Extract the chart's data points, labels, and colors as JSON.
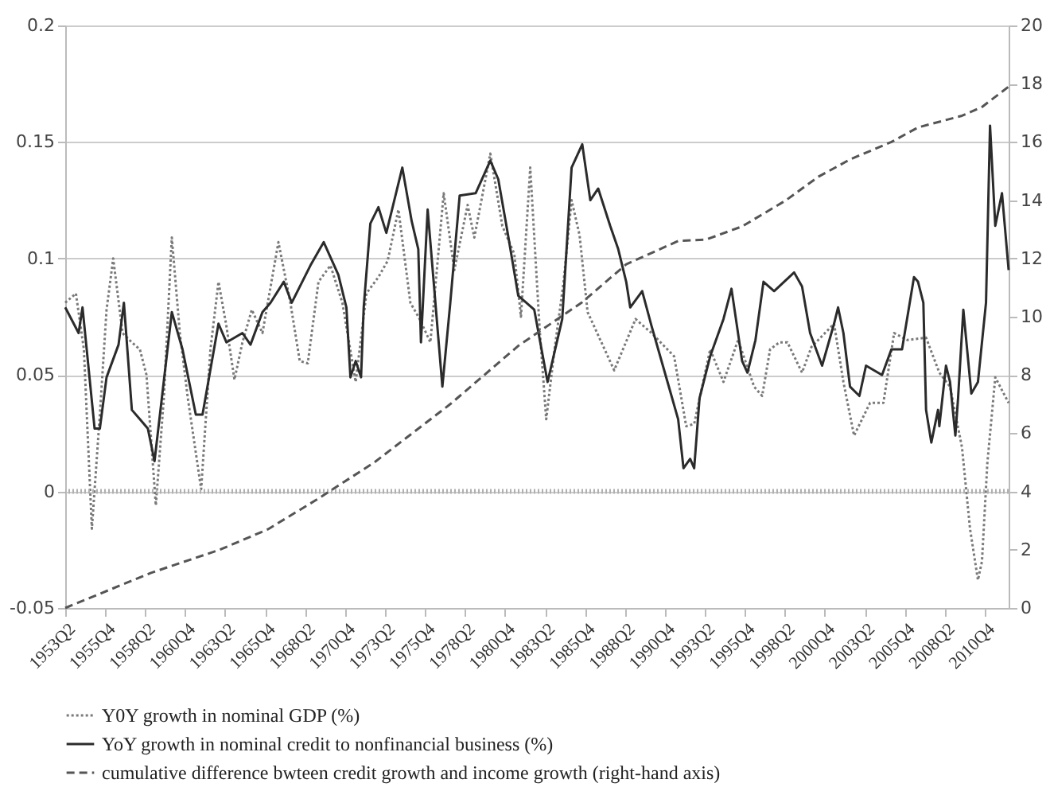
{
  "chart_data": {
    "type": "line",
    "xlim": [
      "1953-04",
      "2012-04"
    ],
    "xticks": [
      {
        "value": "1953-04",
        "label": "1953Q2"
      },
      {
        "value": "1955-10",
        "label": "1955Q4"
      },
      {
        "value": "1958-04",
        "label": "1958Q2"
      },
      {
        "value": "1960-10",
        "label": "1960Q4"
      },
      {
        "value": "1963-04",
        "label": "1963Q2"
      },
      {
        "value": "1965-10",
        "label": "1965Q4"
      },
      {
        "value": "1968-04",
        "label": "1968Q2"
      },
      {
        "value": "1970-10",
        "label": "1970Q4"
      },
      {
        "value": "1973-04",
        "label": "1973Q2"
      },
      {
        "value": "1975-10",
        "label": "1975Q4"
      },
      {
        "value": "1978-04",
        "label": "1978Q2"
      },
      {
        "value": "1980-10",
        "label": "1980Q4"
      },
      {
        "value": "1983-04",
        "label": "1983Q2"
      },
      {
        "value": "1985-10",
        "label": "1985Q4"
      },
      {
        "value": "1988-04",
        "label": "1988Q2"
      },
      {
        "value": "1990-10",
        "label": "1990Q4"
      },
      {
        "value": "1993-04",
        "label": "1993Q2"
      },
      {
        "value": "1995-10",
        "label": "1995Q4"
      },
      {
        "value": "1998-04",
        "label": "1998Q2"
      },
      {
        "value": "2000-10",
        "label": "2000Q4"
      },
      {
        "value": "2003-04",
        "label": "2003Q2"
      },
      {
        "value": "2005-10",
        "label": "2005Q4"
      },
      {
        "value": "2008-04",
        "label": "2008Q2"
      },
      {
        "value": "2010-10",
        "label": "2010Q4"
      }
    ],
    "ylim": [
      -0.05,
      0.2
    ],
    "yticks": [
      -0.05,
      0,
      0.05,
      0.1,
      0.15,
      0.2
    ],
    "y2lim": [
      0,
      20
    ],
    "y2ticks": [
      0,
      2,
      4,
      6,
      8,
      10,
      12,
      14,
      16,
      18,
      20
    ],
    "grid": "y",
    "legend": "bottom",
    "ref_lines": [
      {
        "axis": "y",
        "value": 0,
        "color": "#b0b0b0"
      }
    ],
    "series": [
      {
        "name": "Y0Y growth in nominal GDP (%)",
        "color": "#7a7a7a",
        "line_style": "dotted",
        "x": [
          "1953-04",
          "1953-12",
          "1954-06",
          "1954-12",
          "1955-06",
          "1955-11",
          "1956-04",
          "1956-11",
          "1957-06",
          "1957-12",
          "1958-05",
          "1958-12",
          "1959-06",
          "1959-12",
          "1960-06",
          "1960-12",
          "1961-10",
          "1962-05",
          "1962-11",
          "1963-05",
          "1963-11",
          "1964-05",
          "1964-12",
          "1965-08",
          "1966-08",
          "1967-05",
          "1967-12",
          "1968-06",
          "1969-02",
          "1969-11",
          "1970-08",
          "1971-06",
          "1972-02",
          "1972-11",
          "1973-06",
          "1974-02",
          "1974-11",
          "1975-06",
          "1976-02",
          "1976-12",
          "1977-08",
          "1978-06",
          "1978-11",
          "1979-11",
          "1980-08",
          "1981-05",
          "1981-10",
          "1982-05",
          "1982-12",
          "1983-05",
          "1983-11",
          "1984-06",
          "1984-12",
          "1985-06",
          "1985-12",
          "1987-08",
          "1988-12",
          "1989-12",
          "1991-05",
          "1992-02",
          "1992-08",
          "1993-08",
          "1994-06",
          "1995-05",
          "1996-05",
          "1996-11",
          "1997-05",
          "1997-12",
          "1998-06",
          "1999-05",
          "1999-12",
          "2001-05",
          "2001-12",
          "2002-08",
          "2003-08",
          "2004-06",
          "2005-02",
          "2005-12",
          "2007-02",
          "2007-12",
          "2008-08",
          "2009-05",
          "2009-11",
          "2010-05",
          "2010-08",
          "2010-12",
          "2011-06",
          "2012-04"
        ],
        "values": [
          0.081,
          0.085,
          0.061,
          -0.016,
          0.033,
          0.078,
          0.1,
          0.068,
          0.064,
          0.061,
          0.05,
          -0.006,
          0.04,
          0.109,
          0.068,
          0.04,
          0.001,
          0.061,
          0.09,
          0.071,
          0.048,
          0.064,
          0.078,
          0.068,
          0.107,
          0.081,
          0.056,
          0.055,
          0.09,
          0.097,
          0.081,
          0.047,
          0.085,
          0.092,
          0.099,
          0.121,
          0.081,
          0.074,
          0.064,
          0.128,
          0.095,
          0.123,
          0.109,
          0.145,
          0.114,
          0.102,
          0.075,
          0.139,
          0.07,
          0.031,
          0.06,
          0.09,
          0.125,
          0.11,
          0.077,
          0.052,
          0.074,
          0.068,
          0.058,
          0.028,
          0.029,
          0.061,
          0.047,
          0.065,
          0.045,
          0.041,
          0.061,
          0.064,
          0.064,
          0.051,
          0.062,
          0.072,
          0.047,
          0.024,
          0.038,
          0.038,
          0.068,
          0.065,
          0.066,
          0.051,
          0.045,
          0.019,
          -0.016,
          -0.038,
          -0.03,
          0.012,
          0.049,
          0.038
        ]
      },
      {
        "name": "YoY growth in nominal credit to nonfinancial business (%)",
        "color": "#2b2b2b",
        "line_style": "solid",
        "x": [
          "1953-04",
          "1954-02",
          "1954-05",
          "1955-02",
          "1955-06",
          "1955-11",
          "1956-08",
          "1956-12",
          "1957-06",
          "1957-12",
          "1958-06",
          "1958-11",
          "1959-12",
          "1960-08",
          "1961-06",
          "1961-11",
          "1962-11",
          "1963-05",
          "1964-05",
          "1964-11",
          "1965-08",
          "1966-02",
          "1966-12",
          "1967-06",
          "1968-08",
          "1969-06",
          "1970-05",
          "1970-11",
          "1971-02",
          "1971-06",
          "1971-10",
          "1971-12",
          "1972-05",
          "1972-11",
          "1973-05",
          "1974-05",
          "1974-12",
          "1975-05",
          "1975-07",
          "1975-12",
          "1976-11",
          "1977-05",
          "1977-12",
          "1978-12",
          "1979-11",
          "1980-05",
          "1980-12",
          "1981-08",
          "1982-08",
          "1983-06",
          "1984-05",
          "1984-12",
          "1985-08",
          "1986-02",
          "1986-08",
          "1987-05",
          "1987-11",
          "1988-05",
          "1988-08",
          "1989-05",
          "1989-12",
          "1990-12",
          "1991-08",
          "1991-12",
          "1992-05",
          "1992-08",
          "1992-12",
          "1993-08",
          "1994-06",
          "1994-12",
          "1995-08",
          "1995-12",
          "1996-06",
          "1996-12",
          "1997-08",
          "1998-11",
          "1999-05",
          "1999-11",
          "2000-08",
          "2001-05",
          "2001-08",
          "2001-12",
          "2002-05",
          "2002-12",
          "2003-05",
          "2004-05",
          "2004-12",
          "2005-08",
          "2006-05",
          "2006-08",
          "2006-12",
          "2007-02",
          "2007-06",
          "2007-11",
          "2007-12",
          "2008-05",
          "2008-08",
          "2008-12",
          "2009-02",
          "2009-06",
          "2009-12",
          "2010-05",
          "2010-11",
          "2011-02",
          "2011-06",
          "2011-11",
          "2012-04"
        ],
        "values": [
          0.079,
          0.068,
          0.079,
          0.027,
          0.027,
          0.049,
          0.063,
          0.081,
          0.035,
          0.031,
          0.027,
          0.013,
          0.077,
          0.061,
          0.033,
          0.033,
          0.072,
          0.064,
          0.068,
          0.063,
          0.077,
          0.081,
          0.09,
          0.081,
          0.097,
          0.107,
          0.093,
          0.079,
          0.049,
          0.056,
          0.049,
          0.079,
          0.115,
          0.122,
          0.111,
          0.139,
          0.116,
          0.104,
          0.064,
          0.121,
          0.045,
          0.081,
          0.127,
          0.128,
          0.142,
          0.134,
          0.111,
          0.084,
          0.078,
          0.047,
          0.074,
          0.139,
          0.149,
          0.125,
          0.13,
          0.114,
          0.104,
          0.09,
          0.079,
          0.086,
          0.071,
          0.047,
          0.031,
          0.01,
          0.014,
          0.01,
          0.04,
          0.058,
          0.074,
          0.087,
          0.056,
          0.051,
          0.065,
          0.09,
          0.086,
          0.094,
          0.088,
          0.068,
          0.054,
          0.072,
          0.079,
          0.068,
          0.045,
          0.041,
          0.054,
          0.05,
          0.061,
          0.061,
          0.092,
          0.09,
          0.081,
          0.035,
          0.021,
          0.035,
          0.028,
          0.054,
          0.047,
          0.024,
          0.04,
          0.078,
          0.042,
          0.047,
          0.081,
          0.157,
          0.114,
          0.128,
          0.095
        ]
      },
      {
        "name": "cumulative difference bwteen credit growth and income growth (right-hand axis)",
        "color": "#555555",
        "line_style": "dashed",
        "axis": "y2",
        "x": [
          "1953-04",
          "1958-08",
          "1962-12",
          "1965-12",
          "1968-12",
          "1972-08",
          "1977-05",
          "1981-08",
          "1985-08",
          "1988-05",
          "1991-08",
          "1993-05",
          "1995-08",
          "1998-05",
          "2000-05",
          "2002-05",
          "2004-12",
          "2006-08",
          "2009-05",
          "2010-08",
          "2012-04"
        ],
        "values": [
          0,
          1.2,
          2.0,
          2.7,
          3.7,
          5.0,
          7.0,
          9.0,
          10.5,
          11.8,
          12.6,
          12.65,
          13.1,
          14.0,
          14.8,
          15.4,
          16.0,
          16.5,
          16.9,
          17.2,
          17.9
        ]
      }
    ]
  }
}
